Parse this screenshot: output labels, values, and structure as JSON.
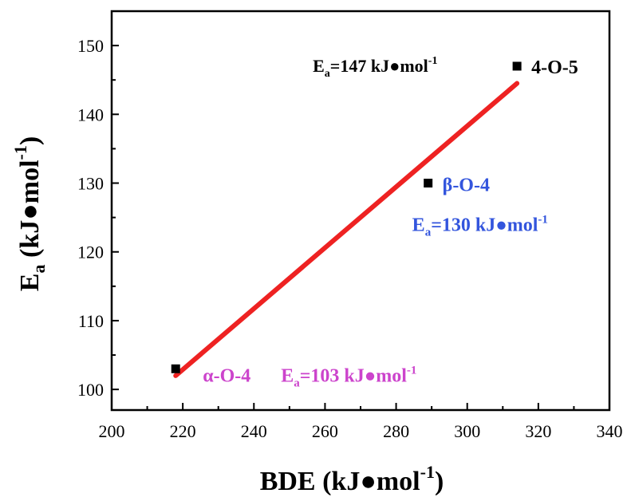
{
  "chart_data": {
    "type": "scatter",
    "xlabel": "BDE (kJ●mol",
    "xlabel_sup": "-1",
    "xlabel_close": ")",
    "ylabel_main": "E",
    "ylabel_sub": "a",
    "ylabel_rest": " (kJ●mol",
    "ylabel_sup": "-1",
    "ylabel_close": ")",
    "xlim": [
      200,
      340
    ],
    "ylim": [
      97,
      155
    ],
    "x_ticks": [
      200,
      220,
      240,
      260,
      280,
      300,
      320,
      340
    ],
    "y_ticks": [
      100,
      110,
      120,
      130,
      140,
      150
    ],
    "grid": false,
    "legend": "none",
    "series": [
      {
        "marker": "square",
        "color": "#000000",
        "points": [
          {
            "x": 218,
            "y": 103
          },
          {
            "x": 289,
            "y": 130
          },
          {
            "x": 314,
            "y": 147
          }
        ]
      }
    ],
    "fit_line": {
      "color": "#ee2222",
      "x": [
        218,
        314
      ],
      "y": [
        102,
        144.5
      ]
    },
    "annotations": [
      {
        "label": "α-O-4",
        "ea_main": "E",
        "ea_sub": "a",
        "ea_value": "=103 kJ●mol",
        "ea_sup": "-1",
        "color": "#cc44cc"
      },
      {
        "label": "β-O-4",
        "ea_main": "E",
        "ea_sub": "a",
        "ea_value": "=130 kJ●mol",
        "ea_sup": "-1",
        "color": "#3355dd"
      },
      {
        "label": "4-O-5",
        "ea_main": "E",
        "ea_sub": "a",
        "ea_value": "=147 kJ●mol",
        "ea_sup": "-1",
        "color": "#000000"
      }
    ]
  }
}
